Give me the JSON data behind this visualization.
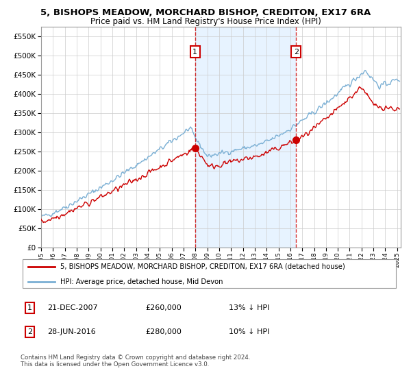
{
  "title_line1": "5, BISHOPS MEADOW, MORCHARD BISHOP, CREDITON, EX17 6RA",
  "title_line2": "Price paid vs. HM Land Registry's House Price Index (HPI)",
  "ytick_values": [
    0,
    50000,
    100000,
    150000,
    200000,
    250000,
    300000,
    350000,
    400000,
    450000,
    500000,
    550000
  ],
  "ylim": [
    0,
    575000
  ],
  "sale1_x": 2007.97,
  "sale1_y": 260000,
  "sale2_x": 2016.49,
  "sale2_y": 280000,
  "legend_line1": "5, BISHOPS MEADOW, MORCHARD BISHOP, CREDITON, EX17 6RA (detached house)",
  "legend_line2": "HPI: Average price, detached house, Mid Devon",
  "footer": "Contains HM Land Registry data © Crown copyright and database right 2024.\nThis data is licensed under the Open Government Licence v3.0.",
  "hpi_color": "#7aafd4",
  "price_color": "#cc0000",
  "shade_color": "#ddeeff",
  "background_color": "#ffffff",
  "grid_color": "#cccccc",
  "xlim_start": 1995.0,
  "xlim_end": 2025.3
}
